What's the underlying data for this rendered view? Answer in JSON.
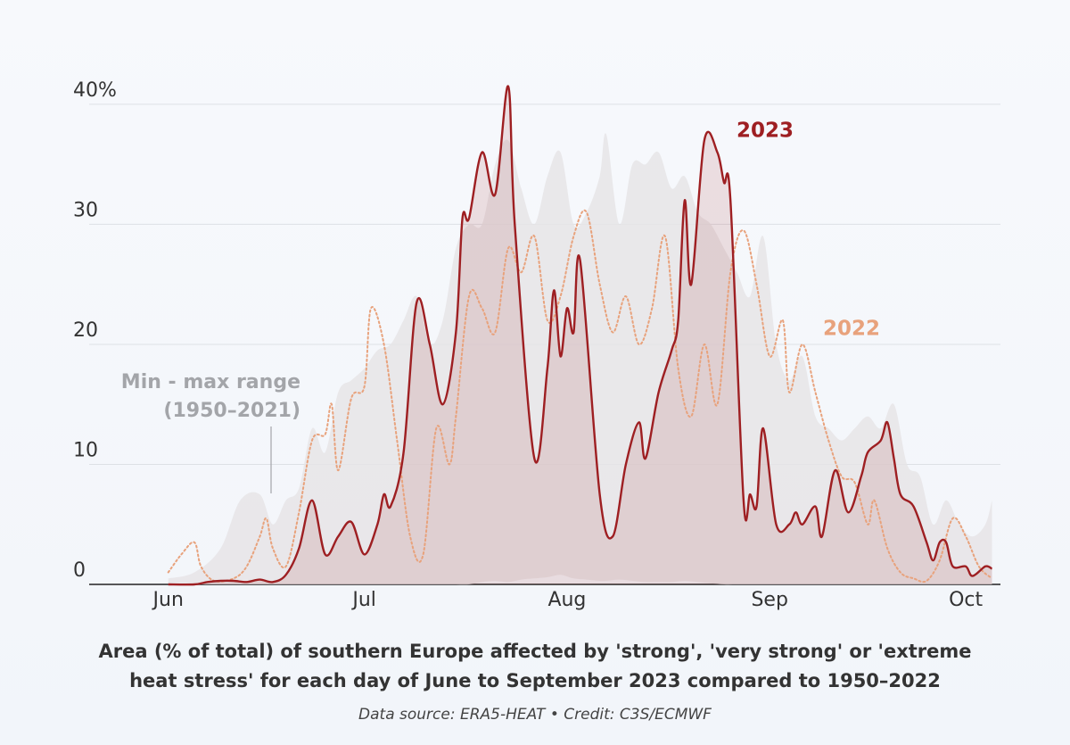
{
  "chart_data": {
    "type": "line",
    "caption": [
      "Area (% of total) of southern Europe affected by 'strong', 'very strong' or 'extreme",
      "heat stress' for each day of June to September 2023 compared to 1950–2022"
    ],
    "source": "Data source: ERA5-HEAT • Credit: C3S/ECMWF",
    "xlim": [
      -12.1,
      127.3
    ],
    "xticks": [
      {
        "value": 0,
        "label": "Jun"
      },
      {
        "value": 30,
        "label": "Jul"
      },
      {
        "value": 61,
        "label": "Aug"
      },
      {
        "value": 92,
        "label": "Sep"
      },
      {
        "value": 122,
        "label": "Oct"
      }
    ],
    "ylim": [
      0,
      42
    ],
    "yticks": [
      0,
      10,
      20,
      30,
      {
        "value": 40,
        "label": "40%"
      }
    ],
    "grid": true,
    "range": {
      "label": [
        "Min - max range",
        "(1950–2021)"
      ],
      "color": "#e6e4e6",
      "x": [
        0,
        4,
        8,
        11,
        14,
        16,
        18,
        20,
        22,
        24,
        26,
        28,
        30,
        32,
        34,
        36,
        38,
        40,
        42,
        44,
        46,
        48,
        50,
        52,
        54,
        56,
        58,
        60,
        62,
        64,
        66,
        67,
        69,
        71,
        73,
        75,
        77,
        79,
        81,
        83,
        85,
        87,
        89,
        91,
        93,
        95,
        97,
        99,
        101,
        103,
        105,
        107,
        109,
        111,
        113,
        115,
        117,
        119,
        121,
        123,
        125,
        126
      ],
      "min": [
        0,
        0,
        0,
        0,
        0,
        0,
        0,
        0,
        0,
        0,
        0,
        0,
        0,
        0,
        0,
        0,
        0,
        0,
        0,
        0,
        0,
        0.2,
        0.3,
        0.2,
        0.4,
        0.5,
        0.6,
        0.8,
        0.5,
        0.4,
        0.3,
        0.3,
        0.4,
        0.3,
        0.2,
        0.2,
        0.2,
        0.3,
        0.2,
        0.1,
        0,
        0,
        0,
        0,
        0,
        0,
        0,
        0,
        0,
        0,
        0,
        0,
        0,
        0,
        0,
        0,
        0,
        0,
        0,
        0,
        0,
        0
      ],
      "max": [
        0.5,
        1,
        3,
        7,
        7.5,
        5,
        7,
        8,
        13,
        11,
        16,
        17,
        18,
        19.5,
        20,
        22,
        24,
        20,
        22,
        28,
        30,
        30,
        35,
        37,
        33,
        30,
        34,
        36,
        30,
        31,
        34,
        37.5,
        30,
        35,
        35,
        36,
        33,
        34,
        31,
        30,
        28,
        26,
        24,
        29,
        20,
        17,
        19,
        14,
        13,
        12,
        13,
        14,
        13,
        15,
        10,
        9,
        5,
        7,
        5,
        4,
        5,
        7
      ]
    },
    "series": [
      {
        "name": "2023",
        "color": "#9e1f22",
        "fill": true,
        "x": [
          0,
          4,
          6,
          8,
          10,
          12,
          14,
          16,
          18,
          20,
          22,
          24,
          26,
          28,
          30,
          32,
          33,
          34,
          36,
          38,
          40,
          42,
          44,
          45,
          46,
          48,
          50,
          52,
          53,
          56,
          58,
          59,
          60,
          61,
          62,
          63,
          66,
          68,
          70,
          72,
          73,
          75,
          77,
          78,
          79,
          80,
          82,
          84,
          85,
          86,
          88,
          89,
          90,
          91,
          93,
          95,
          96,
          97,
          99,
          100,
          102,
          104,
          106,
          107,
          109,
          110,
          111,
          112,
          114,
          116,
          117,
          118,
          119,
          120,
          122,
          123,
          125,
          126
        ],
        "values": [
          0,
          0,
          0.2,
          0.3,
          0.3,
          0.2,
          0.4,
          0.2,
          0.8,
          3,
          7,
          2.5,
          4,
          5.2,
          2.5,
          5,
          7.5,
          6.5,
          11,
          23.5,
          20,
          15,
          21,
          30.5,
          30.5,
          36,
          32.5,
          41.5,
          30,
          10.5,
          18,
          24.5,
          19,
          23,
          21,
          27,
          7.5,
          4,
          10,
          13.5,
          10.5,
          16,
          19.5,
          22,
          32,
          25,
          37,
          36,
          33.5,
          32,
          7,
          7.5,
          6.5,
          13,
          5,
          5,
          6,
          5,
          6.5,
          4,
          9.5,
          6,
          9,
          11,
          12,
          13.5,
          10.5,
          7.5,
          6.5,
          3.5,
          2,
          3.5,
          3.5,
          1.5,
          1.5,
          0.7,
          1.5,
          1.3
        ]
      },
      {
        "name": "2022",
        "color": "#e8a27c",
        "dash": true,
        "x": [
          0,
          2,
          4,
          5,
          7,
          10,
          12,
          14,
          15,
          16,
          18,
          20,
          22,
          24,
          25,
          26,
          28,
          30,
          31,
          33,
          35,
          37,
          39,
          41,
          43,
          44,
          46,
          48,
          50,
          52,
          54,
          56,
          58,
          60,
          62,
          64,
          66,
          68,
          70,
          72,
          74,
          76,
          78,
          80,
          82,
          84,
          86,
          88,
          90,
          92,
          94,
          95,
          97,
          99,
          101,
          103,
          105,
          107,
          108,
          110,
          112,
          114,
          116,
          118,
          120,
          122,
          124,
          126
        ],
        "values": [
          1,
          2.5,
          3.5,
          1.5,
          0.3,
          0.5,
          1.5,
          4,
          5.5,
          3,
          1.5,
          6,
          12,
          12.5,
          15,
          9.5,
          15.5,
          16.5,
          23,
          20,
          12,
          4,
          2.5,
          13,
          10,
          14,
          24,
          23,
          21,
          28,
          26,
          29,
          22,
          24,
          29,
          31,
          25,
          21,
          24,
          20,
          23,
          29,
          18,
          14,
          20,
          15,
          26,
          29.5,
          25,
          19,
          22,
          16,
          20,
          16,
          12,
          9,
          8.5,
          5,
          7,
          3,
          1,
          0.5,
          0.3,
          2,
          5.5,
          4,
          1.5,
          0.5
        ]
      }
    ]
  }
}
